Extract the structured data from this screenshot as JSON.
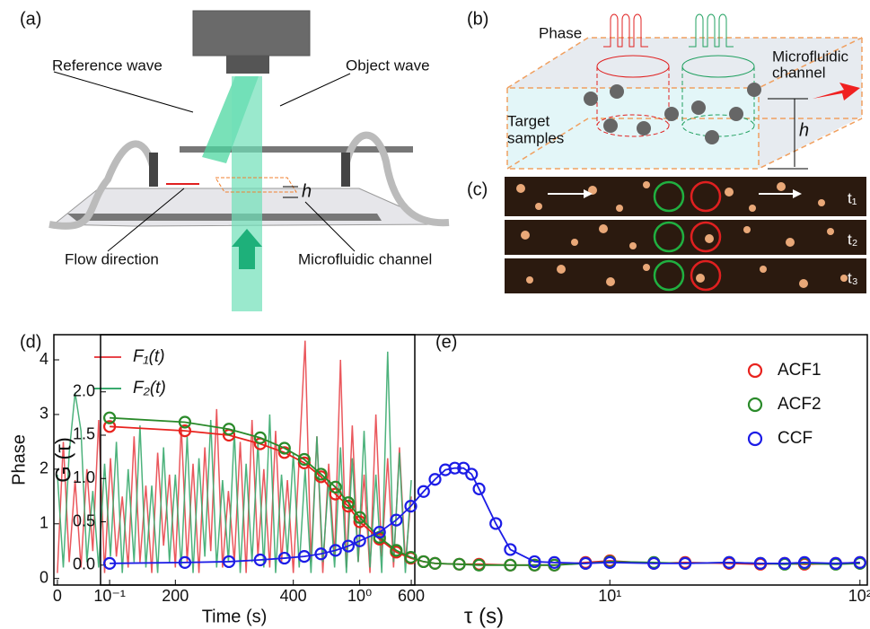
{
  "panels": {
    "a": {
      "label": "(a)",
      "reference_wave": "Reference wave",
      "object_wave": "Object wave",
      "flow_direction": "Flow direction",
      "microfluidic_channel": "Microfluidic channel",
      "h": "h"
    },
    "b": {
      "label": "(b)",
      "phase": "Phase",
      "channel": [
        "Microfluidic",
        "channel"
      ],
      "samples": [
        "Target",
        "samples"
      ],
      "h": "h"
    },
    "c": {
      "label": "(c)",
      "times": [
        "t₁",
        "t₂",
        "t₃"
      ]
    }
  },
  "chart_data": [
    {
      "type": "line",
      "panel_label": "(d)",
      "xlabel": "Time (s)",
      "ylabel": "Phase",
      "x": [
        0,
        10,
        20,
        30,
        40,
        50,
        60,
        70,
        80,
        90,
        100,
        110,
        120,
        130,
        140,
        150,
        160,
        170,
        180,
        190,
        200,
        210,
        220,
        230,
        240,
        250,
        260,
        270,
        280,
        290,
        300,
        310,
        320,
        330,
        340,
        350,
        360,
        370,
        380,
        390,
        400,
        410,
        420,
        430,
        440,
        450,
        460,
        470,
        480,
        490,
        500,
        510,
        520,
        530,
        540,
        550,
        560,
        570,
        580,
        590,
        600
      ],
      "series": [
        {
          "name": "F₁(t)",
          "color": "#e8454a",
          "values": [
            0.1,
            2.5,
            0.3,
            1.8,
            0.2,
            2.0,
            0.5,
            2.9,
            0.1,
            2.2,
            0.4,
            1.5,
            0.2,
            2.6,
            0.3,
            1.7,
            0.1,
            2.3,
            0.6,
            1.9,
            0.2,
            2.8,
            0.3,
            2.1,
            0.1,
            2.4,
            0.5,
            3.1,
            0.2,
            1.6,
            0.3,
            2.5,
            0.1,
            2.9,
            0.4,
            2.0,
            0.2,
            2.7,
            0.3,
            1.8,
            0.1,
            2.2,
            4.35,
            0.3,
            2.6,
            0.1,
            2.1,
            0.4,
            4.0,
            0.2,
            2.8,
            0.3,
            1.9,
            0.1,
            3.0,
            0.4,
            2.2,
            0.2,
            2.4,
            0.3,
            1.5
          ]
        },
        {
          "name": "F₂(t)",
          "color": "#3aaa6e",
          "values": [
            1.9,
            0.2,
            2.3,
            3.4,
            2.7,
            0.3,
            1.6,
            0.2,
            2.1,
            0.4,
            2.5,
            0.1,
            2.0,
            0.3,
            2.8,
            0.2,
            1.7,
            0.1,
            2.4,
            0.3,
            1.9,
            0.2,
            2.6,
            0.1,
            2.2,
            0.4,
            2.9,
            0.2,
            1.8,
            0.3,
            2.7,
            0.1,
            2.1,
            0.3,
            2.5,
            0.2,
            3.0,
            0.1,
            1.9,
            0.4,
            2.3,
            0.2,
            2.0,
            0.1,
            2.6,
            0.3,
            1.8,
            0.2,
            2.4,
            0.1,
            2.2,
            0.3,
            2.7,
            0.2,
            1.9,
            0.1,
            4.15,
            0.3,
            2.3,
            0.1,
            1.8
          ]
        }
      ],
      "xlim": [
        -6,
        606
      ],
      "xticks": [
        0,
        200,
        400,
        600
      ],
      "ylim": [
        -0.12,
        4.46
      ],
      "yticks": [
        0,
        1,
        2,
        3,
        4
      ],
      "legend": "upper left"
    },
    {
      "type": "scatter",
      "panel_label": "(e)",
      "xlabel": "τ (s)",
      "ylabel": "G (τ)",
      "xscale": "log",
      "fit_lines": true,
      "series": [
        {
          "name": "ACF1",
          "color": "#e8231e",
          "x": [
            0.1,
            0.2,
            0.3,
            0.4,
            0.5,
            0.6,
            0.7,
            0.8,
            0.9,
            1.0,
            1.2,
            1.4,
            1.6,
            1.8,
            2,
            2.5,
            3,
            4,
            5,
            6,
            8,
            10,
            15,
            20,
            30,
            40,
            50,
            60,
            80,
            100
          ],
          "values": [
            1.6,
            1.55,
            1.5,
            1.4,
            1.3,
            1.18,
            1.02,
            0.82,
            0.68,
            0.5,
            0.3,
            0.15,
            0.08,
            0.04,
            0.02,
            0.01,
            0.01,
            0.0,
            0.0,
            0.0,
            0.03,
            0.05,
            0.02,
            0.03,
            0.02,
            0.01,
            0.02,
            0.01,
            0.02,
            0.03
          ]
        },
        {
          "name": "ACF2",
          "color": "#2a8a2a",
          "x": [
            0.1,
            0.2,
            0.3,
            0.4,
            0.5,
            0.6,
            0.7,
            0.8,
            0.9,
            1.0,
            1.2,
            1.4,
            1.6,
            1.8,
            2,
            2.5,
            3,
            4,
            5,
            6,
            8,
            10,
            15,
            20,
            30,
            40,
            50,
            60,
            80,
            100
          ],
          "values": [
            1.7,
            1.65,
            1.57,
            1.47,
            1.35,
            1.22,
            1.05,
            0.9,
            0.72,
            0.55,
            0.32,
            0.17,
            0.09,
            0.04,
            0.02,
            0.01,
            0.0,
            0.0,
            0.0,
            0.0,
            0.02,
            0.04,
            0.03,
            0.02,
            0.03,
            0.02,
            0.01,
            0.02,
            0.01,
            0.02
          ]
        },
        {
          "name": "CCF",
          "color": "#1c1ce6",
          "x": [
            0.1,
            0.2,
            0.3,
            0.4,
            0.5,
            0.6,
            0.7,
            0.8,
            0.9,
            1.0,
            1.2,
            1.4,
            1.6,
            1.8,
            2.0,
            2.2,
            2.4,
            2.6,
            2.8,
            3.0,
            3.5,
            4.0,
            5,
            6,
            8,
            10,
            15,
            20,
            30,
            40,
            50,
            60,
            80,
            100
          ],
          "values": [
            0.02,
            0.03,
            0.04,
            0.06,
            0.08,
            0.1,
            0.13,
            0.17,
            0.22,
            0.28,
            0.38,
            0.52,
            0.68,
            0.85,
            0.99,
            1.1,
            1.12,
            1.12,
            1.05,
            0.88,
            0.48,
            0.18,
            0.04,
            0.03,
            0.02,
            0.03,
            0.02,
            0.02,
            0.03,
            0.02,
            0.02,
            0.03,
            0.02,
            0.03
          ]
        }
      ],
      "xlim": [
        0.092,
        107
      ],
      "xticks": [
        {
          "value": 0.1,
          "label": "10⁻¹"
        },
        {
          "value": 1,
          "label": "10⁰"
        },
        {
          "value": 10,
          "label": "10¹"
        },
        {
          "value": 100,
          "label": "10²"
        }
      ],
      "ylim": [
        -0.23,
        2.66
      ],
      "yticks": [
        {
          "value": 0,
          "label": "0.0"
        },
        0.5,
        {
          "value": 1,
          "label": "1.0"
        },
        1.5,
        {
          "value": 2,
          "label": "2.0"
        }
      ],
      "legend": "upper right"
    }
  ]
}
